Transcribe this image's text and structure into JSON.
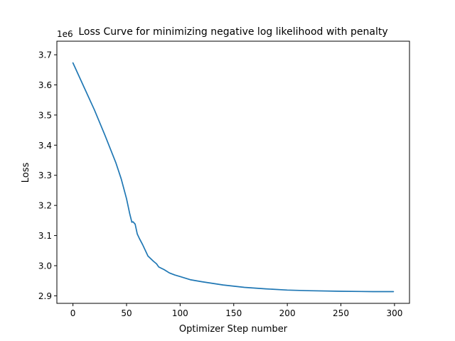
{
  "chart_data": {
    "type": "line",
    "title": "Loss Curve for minimizing negative log likelihood with penalty",
    "xlabel": "Optimizer Step number",
    "ylabel": "Loss",
    "offset_text": "1e6",
    "xlim": [
      -15,
      314
    ],
    "ylim": [
      2.875,
      3.745
    ],
    "x_ticks": [
      0,
      50,
      100,
      150,
      200,
      250,
      300
    ],
    "x_tick_labels": [
      "0",
      "50",
      "100",
      "150",
      "200",
      "250",
      "300"
    ],
    "y_ticks": [
      2.9,
      3.0,
      3.1,
      3.2,
      3.3,
      3.4,
      3.5,
      3.6,
      3.7
    ],
    "y_tick_labels": [
      "2.9",
      "3.0",
      "3.1",
      "3.2",
      "3.3",
      "3.4",
      "3.5",
      "3.6",
      "3.7"
    ],
    "grid": false,
    "legend": "none",
    "series": [
      {
        "color": "#1f77b4",
        "x": [
          0,
          10,
          20,
          30,
          40,
          45,
          50,
          53,
          55,
          56,
          58,
          60,
          62,
          65,
          70,
          75,
          78,
          80,
          85,
          90,
          95,
          100,
          110,
          120,
          140,
          160,
          180,
          200,
          220,
          250,
          280,
          299
        ],
        "y": [
          3.673,
          3.595,
          3.517,
          3.432,
          3.342,
          3.288,
          3.222,
          3.172,
          3.144,
          3.146,
          3.138,
          3.105,
          3.09,
          3.07,
          3.032,
          3.015,
          3.006,
          2.996,
          2.987,
          2.976,
          2.969,
          2.964,
          2.953,
          2.947,
          2.936,
          2.928,
          2.923,
          2.919,
          2.917,
          2.915,
          2.914,
          2.914
        ]
      }
    ]
  }
}
